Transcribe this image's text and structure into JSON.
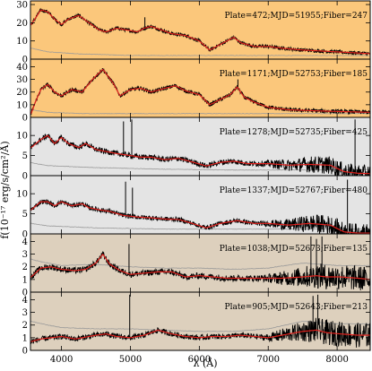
{
  "chart_data": {
    "type": "line",
    "xlabel": "λ (Å)",
    "ylabel": "f(10⁻¹⁷ erg/s/cm²/Å)",
    "xlim": [
      3550,
      8480
    ],
    "xticks": [
      4000,
      5000,
      6000,
      7000,
      8000
    ],
    "grid": false,
    "colors": {
      "spectrum": "#000000",
      "model": "#e0201c",
      "error": "#9a9a9a",
      "bg_orange": "#fbc77b",
      "bg_gray": "#e4e4e4",
      "bg_tan": "#ddd0bd"
    },
    "panels": [
      {
        "label": "Plate=472;MJD=51955;Fiber=247",
        "bg": "orange",
        "ylim": [
          0,
          32
        ],
        "yticks": [
          0,
          10,
          20,
          30
        ],
        "model": [
          [
            3560,
            19
          ],
          [
            3700,
            27
          ],
          [
            3800,
            26
          ],
          [
            3900,
            22
          ],
          [
            4000,
            19
          ],
          [
            4100,
            22
          ],
          [
            4250,
            24
          ],
          [
            4400,
            20
          ],
          [
            4550,
            16
          ],
          [
            4650,
            15
          ],
          [
            4800,
            17
          ],
          [
            4950,
            16
          ],
          [
            5100,
            15
          ],
          [
            5200,
            17
          ],
          [
            5300,
            18
          ],
          [
            5450,
            16
          ],
          [
            5600,
            14
          ],
          [
            5800,
            13
          ],
          [
            6000,
            10
          ],
          [
            6150,
            5
          ],
          [
            6300,
            8
          ],
          [
            6500,
            12
          ],
          [
            6600,
            9
          ],
          [
            6800,
            7
          ],
          [
            7000,
            7
          ],
          [
            7200,
            6
          ],
          [
            7500,
            5
          ],
          [
            8000,
            4
          ],
          [
            8480,
            3
          ]
        ],
        "error": [
          [
            3560,
            6
          ],
          [
            3800,
            4
          ],
          [
            4200,
            3
          ],
          [
            5000,
            2
          ],
          [
            6000,
            2
          ],
          [
            7000,
            2
          ],
          [
            8000,
            2
          ],
          [
            8480,
            2
          ]
        ],
        "noise": 1.0,
        "spikes": [
          [
            5210,
            23
          ]
        ]
      },
      {
        "label": "Plate=1171;MJD=52753;Fiber=185",
        "bg": "orange",
        "ylim": [
          0,
          46
        ],
        "yticks": [
          0,
          10,
          20,
          30,
          40
        ],
        "model": [
          [
            3560,
            3
          ],
          [
            3620,
            12
          ],
          [
            3700,
            22
          ],
          [
            3800,
            26
          ],
          [
            3900,
            20
          ],
          [
            4000,
            17
          ],
          [
            4150,
            22
          ],
          [
            4300,
            20
          ],
          [
            4450,
            30
          ],
          [
            4600,
            38
          ],
          [
            4750,
            27
          ],
          [
            4850,
            17
          ],
          [
            5000,
            22
          ],
          [
            5150,
            23
          ],
          [
            5300,
            20
          ],
          [
            5500,
            23
          ],
          [
            5650,
            25
          ],
          [
            5800,
            21
          ],
          [
            6000,
            18
          ],
          [
            6150,
            10
          ],
          [
            6300,
            14
          ],
          [
            6450,
            18
          ],
          [
            6550,
            24
          ],
          [
            6650,
            16
          ],
          [
            6800,
            12
          ],
          [
            7000,
            8
          ],
          [
            7300,
            6
          ],
          [
            7800,
            5
          ],
          [
            8480,
            4
          ]
        ],
        "error": [
          [
            3560,
            6
          ],
          [
            3800,
            4
          ],
          [
            4300,
            3
          ],
          [
            5500,
            3
          ],
          [
            6500,
            3
          ],
          [
            7500,
            3
          ],
          [
            8480,
            3
          ]
        ],
        "noise": 1.6,
        "spikes": [
          [
            6560,
            30
          ]
        ]
      },
      {
        "label": "Plate=1278;MJD=52735;Fiber=425",
        "bg": "gray",
        "ylim": [
          0,
          14.5
        ],
        "yticks": [
          0,
          5,
          10
        ],
        "model": [
          [
            3560,
            7
          ],
          [
            3700,
            9
          ],
          [
            3800,
            10
          ],
          [
            3900,
            8
          ],
          [
            4000,
            9.5
          ],
          [
            4100,
            8
          ],
          [
            4250,
            7
          ],
          [
            4350,
            8
          ],
          [
            4500,
            6.5
          ],
          [
            4650,
            6
          ],
          [
            4800,
            5.5
          ],
          [
            5000,
            5
          ],
          [
            5150,
            4.6
          ],
          [
            5300,
            4.6
          ],
          [
            5500,
            4
          ],
          [
            5700,
            4.3
          ],
          [
            5900,
            3.4
          ],
          [
            6100,
            2.4
          ],
          [
            6300,
            3.3
          ],
          [
            6500,
            3.6
          ],
          [
            6700,
            3
          ],
          [
            7000,
            3
          ],
          [
            7300,
            2.6
          ],
          [
            7600,
            2.8
          ],
          [
            7900,
            2.6
          ],
          [
            8100,
            1
          ],
          [
            8300,
            0.6
          ],
          [
            8480,
            0.5
          ]
        ],
        "error": [
          [
            3560,
            3.2
          ],
          [
            3800,
            2.5
          ],
          [
            4500,
            2
          ],
          [
            5500,
            1.6
          ],
          [
            6500,
            1.4
          ],
          [
            7500,
            1.4
          ],
          [
            8480,
            1.5
          ]
        ],
        "noise": 0.7,
        "noise_hi": 2.2,
        "spikes": [
          [
            4900,
            13.5
          ],
          [
            5020,
            14
          ],
          [
            8260,
            14
          ]
        ]
      },
      {
        "label": "Plate=1337;MJD=52767;Fiber=480",
        "bg": "gray",
        "ylim": [
          0,
          14.5
        ],
        "yticks": [
          0,
          5,
          10
        ],
        "model": [
          [
            3560,
            6
          ],
          [
            3700,
            8
          ],
          [
            3800,
            8
          ],
          [
            3900,
            7
          ],
          [
            4000,
            8
          ],
          [
            4150,
            7
          ],
          [
            4300,
            7.5
          ],
          [
            4400,
            6.5
          ],
          [
            4550,
            6
          ],
          [
            4700,
            5.6
          ],
          [
            4900,
            4.6
          ],
          [
            5100,
            4.2
          ],
          [
            5300,
            4
          ],
          [
            5500,
            3.7
          ],
          [
            5700,
            3.6
          ],
          [
            5900,
            2.6
          ],
          [
            6100,
            1.5
          ],
          [
            6300,
            2.6
          ],
          [
            6550,
            3.3
          ],
          [
            6800,
            2.6
          ],
          [
            7000,
            2.6
          ],
          [
            7300,
            2.2
          ],
          [
            7600,
            2.6
          ],
          [
            7900,
            2.2
          ],
          [
            8100,
            0.5
          ],
          [
            8300,
            0.2
          ],
          [
            8480,
            0.2
          ]
        ],
        "error": [
          [
            3560,
            2.6
          ],
          [
            3800,
            2
          ],
          [
            4500,
            1.5
          ],
          [
            5500,
            1.2
          ],
          [
            6500,
            1.2
          ],
          [
            7500,
            1.2
          ],
          [
            8480,
            1.2
          ]
        ],
        "noise": 0.6,
        "noise_hi": 2.4,
        "spikes": [
          [
            4930,
            13
          ],
          [
            5030,
            11.5
          ],
          [
            8150,
            13.5
          ]
        ]
      },
      {
        "label": "Plate=1038;MJD=52673;Fiber=135",
        "bg": "tan",
        "ylim": [
          0,
          4.6
        ],
        "yticks": [
          0,
          1,
          2,
          3,
          4
        ],
        "model": [
          [
            3560,
            1.2
          ],
          [
            3700,
            1.9
          ],
          [
            3850,
            2
          ],
          [
            4000,
            1.8
          ],
          [
            4200,
            1.7
          ],
          [
            4350,
            1.8
          ],
          [
            4500,
            2.3
          ],
          [
            4600,
            3
          ],
          [
            4700,
            2.2
          ],
          [
            4850,
            1.7
          ],
          [
            5000,
            1.4
          ],
          [
            5200,
            1.5
          ],
          [
            5400,
            1.6
          ],
          [
            5600,
            1.6
          ],
          [
            5800,
            1.2
          ],
          [
            6000,
            1.3
          ],
          [
            6200,
            1.2
          ],
          [
            6400,
            1.1
          ],
          [
            6600,
            1.1
          ],
          [
            6900,
            1.1
          ],
          [
            7200,
            1.1
          ],
          [
            7500,
            1.2
          ],
          [
            7700,
            1.3
          ],
          [
            7850,
            1.2
          ],
          [
            8050,
            1.2
          ],
          [
            8300,
            1.1
          ],
          [
            8480,
            1.0
          ]
        ],
        "error": [
          [
            3560,
            2.6
          ],
          [
            3700,
            2.4
          ],
          [
            4000,
            2.1
          ],
          [
            4500,
            2.2
          ],
          [
            5000,
            2
          ],
          [
            5500,
            1.9
          ],
          [
            6000,
            1.9
          ],
          [
            6500,
            1.8
          ],
          [
            7000,
            1.9
          ],
          [
            7500,
            2.3
          ],
          [
            8000,
            2.1
          ],
          [
            8480,
            2.1
          ]
        ],
        "noise": 0.25,
        "noise_hi": 1.0,
        "spikes": [
          [
            4980,
            3.8
          ],
          [
            7620,
            4.4
          ],
          [
            7700,
            4.2
          ],
          [
            7780,
            4.4
          ]
        ]
      },
      {
        "label": "Plate=905;MJD=52643;Fiber=213",
        "bg": "tan",
        "ylim": [
          0,
          4.6
        ],
        "yticks": [
          0,
          1,
          2,
          3,
          4
        ],
        "model": [
          [
            3560,
            0.7
          ],
          [
            3700,
            0.9
          ],
          [
            3850,
            1
          ],
          [
            4000,
            1.1
          ],
          [
            4200,
            0.9
          ],
          [
            4300,
            1
          ],
          [
            4500,
            1.2
          ],
          [
            4650,
            1.3
          ],
          [
            4800,
            1.1
          ],
          [
            5000,
            1
          ],
          [
            5200,
            1.2
          ],
          [
            5400,
            1.6
          ],
          [
            5600,
            1.3
          ],
          [
            5800,
            1.1
          ],
          [
            6000,
            1
          ],
          [
            6200,
            1.1
          ],
          [
            6400,
            1.1
          ],
          [
            6600,
            1.2
          ],
          [
            6800,
            1.1
          ],
          [
            7000,
            1
          ],
          [
            7300,
            1.3
          ],
          [
            7500,
            1.5
          ],
          [
            7700,
            1.6
          ],
          [
            7850,
            1.4
          ],
          [
            8050,
            1.3
          ],
          [
            8300,
            1.2
          ],
          [
            8480,
            1.2
          ]
        ],
        "error": [
          [
            3560,
            2.3
          ],
          [
            3800,
            2
          ],
          [
            4000,
            1.8
          ],
          [
            4500,
            1.7
          ],
          [
            5000,
            1.7
          ],
          [
            5500,
            1.6
          ],
          [
            6000,
            1.5
          ],
          [
            6500,
            1.5
          ],
          [
            7000,
            1.7
          ],
          [
            7500,
            2.3
          ],
          [
            8000,
            2.1
          ],
          [
            8480,
            2.1
          ]
        ],
        "noise": 0.22,
        "noise_hi": 1.0,
        "spikes": [
          [
            4990,
            4.4
          ],
          [
            7650,
            4.3
          ],
          [
            7720,
            4.4
          ]
        ]
      }
    ]
  }
}
